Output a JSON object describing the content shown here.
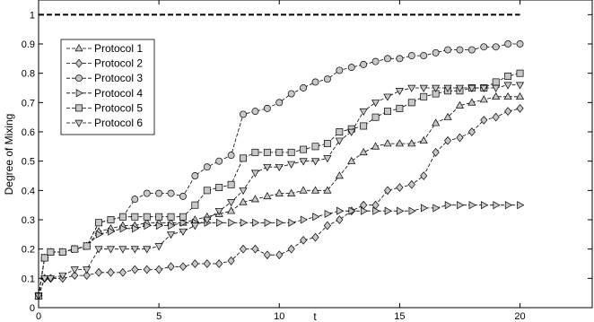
{
  "chart_data": {
    "type": "line",
    "title": "",
    "xlabel": "t",
    "ylabel": "Degree of Mixing",
    "xlim": [
      0,
      23
    ],
    "ylim": [
      0,
      1.05
    ],
    "xticks": [
      "0",
      "5",
      "10",
      "15",
      "20"
    ],
    "xtick_values": [
      0,
      5,
      10,
      15,
      20
    ],
    "yticks": [
      "0",
      "0.1",
      "0.2",
      "0.3",
      "0.4",
      "0.5",
      "0.6",
      "0.7",
      "0.8",
      "0.9",
      "1"
    ],
    "ytick_values": [
      0,
      0.1,
      0.2,
      0.3,
      0.4,
      0.5,
      0.6,
      0.7,
      0.8,
      0.9,
      1
    ],
    "grid": false,
    "legend_position": "top-left",
    "reference_line": {
      "y": 1,
      "style": "dashed",
      "color": "#000000"
    },
    "marker_fill": "#c8c8c8",
    "series": [
      {
        "name": "Protocol 1",
        "marker": "triangle-up",
        "points": [
          [
            0,
            0.04
          ],
          [
            0.25,
            0.17
          ],
          [
            0.5,
            0.19
          ],
          [
            1,
            0.19
          ],
          [
            1.5,
            0.2
          ],
          [
            2,
            0.21
          ],
          [
            2.5,
            0.26
          ],
          [
            3,
            0.27
          ],
          [
            3.5,
            0.28
          ],
          [
            4,
            0.28
          ],
          [
            4.5,
            0.29
          ],
          [
            5,
            0.29
          ],
          [
            5.5,
            0.29
          ],
          [
            6,
            0.29
          ],
          [
            6.5,
            0.3
          ],
          [
            7,
            0.31
          ],
          [
            7.5,
            0.32
          ],
          [
            8,
            0.33
          ],
          [
            8.5,
            0.36
          ],
          [
            9,
            0.37
          ],
          [
            9.5,
            0.38
          ],
          [
            10,
            0.39
          ],
          [
            10.5,
            0.39
          ],
          [
            11,
            0.4
          ],
          [
            11.5,
            0.4
          ],
          [
            12,
            0.4
          ],
          [
            12.5,
            0.45
          ],
          [
            13,
            0.5
          ],
          [
            13.5,
            0.53
          ],
          [
            14,
            0.55
          ],
          [
            14.5,
            0.56
          ],
          [
            15,
            0.56
          ],
          [
            15.5,
            0.56
          ],
          [
            16,
            0.57
          ],
          [
            16.5,
            0.63
          ],
          [
            17,
            0.65
          ],
          [
            17.5,
            0.69
          ],
          [
            18,
            0.7
          ],
          [
            18.5,
            0.71
          ],
          [
            19,
            0.72
          ],
          [
            19.5,
            0.72
          ],
          [
            20,
            0.72
          ]
        ]
      },
      {
        "name": "Protocol 2",
        "marker": "diamond",
        "points": [
          [
            0,
            0.04
          ],
          [
            0.25,
            0.1
          ],
          [
            0.5,
            0.1
          ],
          [
            1,
            0.1
          ],
          [
            1.5,
            0.11
          ],
          [
            2,
            0.11
          ],
          [
            2.5,
            0.12
          ],
          [
            3,
            0.12
          ],
          [
            3.5,
            0.12
          ],
          [
            4,
            0.13
          ],
          [
            4.5,
            0.13
          ],
          [
            5,
            0.13
          ],
          [
            5.5,
            0.14
          ],
          [
            6,
            0.14
          ],
          [
            6.5,
            0.15
          ],
          [
            7,
            0.15
          ],
          [
            7.5,
            0.15
          ],
          [
            8,
            0.16
          ],
          [
            8.5,
            0.2
          ],
          [
            9,
            0.2
          ],
          [
            9.5,
            0.18
          ],
          [
            10,
            0.18
          ],
          [
            10.5,
            0.2
          ],
          [
            11,
            0.23
          ],
          [
            11.5,
            0.24
          ],
          [
            12,
            0.28
          ],
          [
            12.5,
            0.3
          ],
          [
            13,
            0.33
          ],
          [
            13.5,
            0.35
          ],
          [
            14,
            0.35
          ],
          [
            14.5,
            0.4
          ],
          [
            15,
            0.41
          ],
          [
            15.5,
            0.42
          ],
          [
            16,
            0.45
          ],
          [
            16.5,
            0.53
          ],
          [
            17,
            0.57
          ],
          [
            17.5,
            0.58
          ],
          [
            18,
            0.6
          ],
          [
            18.5,
            0.64
          ],
          [
            19,
            0.65
          ],
          [
            19.5,
            0.67
          ],
          [
            20,
            0.68
          ]
        ]
      },
      {
        "name": "Protocol 3",
        "marker": "circle",
        "points": [
          [
            0,
            0.04
          ],
          [
            0.25,
            0.17
          ],
          [
            0.5,
            0.19
          ],
          [
            1,
            0.19
          ],
          [
            1.5,
            0.2
          ],
          [
            2,
            0.21
          ],
          [
            2.5,
            0.29
          ],
          [
            3,
            0.3
          ],
          [
            3.5,
            0.31
          ],
          [
            4,
            0.37
          ],
          [
            4.5,
            0.39
          ],
          [
            5,
            0.39
          ],
          [
            5.5,
            0.39
          ],
          [
            6,
            0.38
          ],
          [
            6.5,
            0.45
          ],
          [
            7,
            0.48
          ],
          [
            7.5,
            0.5
          ],
          [
            8,
            0.52
          ],
          [
            8.5,
            0.66
          ],
          [
            9,
            0.67
          ],
          [
            9.5,
            0.68
          ],
          [
            10,
            0.7
          ],
          [
            10.5,
            0.73
          ],
          [
            11,
            0.75
          ],
          [
            11.5,
            0.77
          ],
          [
            12,
            0.78
          ],
          [
            12.5,
            0.81
          ],
          [
            13,
            0.82
          ],
          [
            13.5,
            0.83
          ],
          [
            14,
            0.84
          ],
          [
            14.5,
            0.85
          ],
          [
            15,
            0.85
          ],
          [
            15.5,
            0.86
          ],
          [
            16,
            0.86
          ],
          [
            16.5,
            0.87
          ],
          [
            17,
            0.88
          ],
          [
            17.5,
            0.88
          ],
          [
            18,
            0.88
          ],
          [
            18.5,
            0.89
          ],
          [
            19,
            0.89
          ],
          [
            19.5,
            0.9
          ],
          [
            20,
            0.9
          ]
        ]
      },
      {
        "name": "Protocol 4",
        "marker": "triangle-right",
        "points": [
          [
            0,
            0.04
          ],
          [
            0.25,
            0.17
          ],
          [
            0.5,
            0.19
          ],
          [
            1,
            0.19
          ],
          [
            1.5,
            0.2
          ],
          [
            2,
            0.21
          ],
          [
            2.5,
            0.25
          ],
          [
            3,
            0.26
          ],
          [
            3.5,
            0.27
          ],
          [
            4,
            0.27
          ],
          [
            4.5,
            0.28
          ],
          [
            5,
            0.28
          ],
          [
            5.5,
            0.28
          ],
          [
            6,
            0.29
          ],
          [
            6.5,
            0.29
          ],
          [
            7,
            0.29
          ],
          [
            7.5,
            0.29
          ],
          [
            8,
            0.29
          ],
          [
            8.5,
            0.29
          ],
          [
            9,
            0.29
          ],
          [
            9.5,
            0.29
          ],
          [
            10,
            0.29
          ],
          [
            10.5,
            0.29
          ],
          [
            11,
            0.3
          ],
          [
            11.5,
            0.31
          ],
          [
            12,
            0.32
          ],
          [
            12.5,
            0.33
          ],
          [
            13,
            0.33
          ],
          [
            13.5,
            0.33
          ],
          [
            14,
            0.33
          ],
          [
            14.5,
            0.33
          ],
          [
            15,
            0.33
          ],
          [
            15.5,
            0.33
          ],
          [
            16,
            0.34
          ],
          [
            16.5,
            0.34
          ],
          [
            17,
            0.35
          ],
          [
            17.5,
            0.35
          ],
          [
            18,
            0.35
          ],
          [
            18.5,
            0.35
          ],
          [
            19,
            0.35
          ],
          [
            19.5,
            0.35
          ],
          [
            20,
            0.35
          ]
        ]
      },
      {
        "name": "Protocol 5",
        "marker": "square",
        "points": [
          [
            0,
            0.04
          ],
          [
            0.25,
            0.17
          ],
          [
            0.5,
            0.19
          ],
          [
            1,
            0.19
          ],
          [
            1.5,
            0.2
          ],
          [
            2,
            0.21
          ],
          [
            2.5,
            0.29
          ],
          [
            3,
            0.3
          ],
          [
            3.5,
            0.31
          ],
          [
            4,
            0.31
          ],
          [
            4.5,
            0.31
          ],
          [
            5,
            0.31
          ],
          [
            5.5,
            0.31
          ],
          [
            6,
            0.31
          ],
          [
            6.5,
            0.35
          ],
          [
            7,
            0.4
          ],
          [
            7.5,
            0.41
          ],
          [
            8,
            0.42
          ],
          [
            8.5,
            0.51
          ],
          [
            9,
            0.53
          ],
          [
            9.5,
            0.53
          ],
          [
            10,
            0.53
          ],
          [
            10.5,
            0.53
          ],
          [
            11,
            0.54
          ],
          [
            11.5,
            0.55
          ],
          [
            12,
            0.56
          ],
          [
            12.5,
            0.6
          ],
          [
            13,
            0.61
          ],
          [
            13.5,
            0.62
          ],
          [
            14,
            0.65
          ],
          [
            14.5,
            0.67
          ],
          [
            15,
            0.68
          ],
          [
            15.5,
            0.7
          ],
          [
            16,
            0.72
          ],
          [
            16.5,
            0.73
          ],
          [
            17,
            0.74
          ],
          [
            17.5,
            0.74
          ],
          [
            18,
            0.75
          ],
          [
            18.5,
            0.75
          ],
          [
            19,
            0.77
          ],
          [
            19.5,
            0.79
          ],
          [
            20,
            0.8
          ]
        ]
      },
      {
        "name": "Protocol 6",
        "marker": "triangle-down",
        "points": [
          [
            0,
            0.04
          ],
          [
            0.25,
            0.1
          ],
          [
            0.5,
            0.1
          ],
          [
            1,
            0.11
          ],
          [
            1.5,
            0.13
          ],
          [
            2,
            0.13
          ],
          [
            2.5,
            0.2
          ],
          [
            3,
            0.2
          ],
          [
            3.5,
            0.2
          ],
          [
            4,
            0.2
          ],
          [
            4.5,
            0.2
          ],
          [
            5,
            0.21
          ],
          [
            5.5,
            0.25
          ],
          [
            6,
            0.26
          ],
          [
            6.5,
            0.28
          ],
          [
            7,
            0.3
          ],
          [
            7.5,
            0.33
          ],
          [
            8,
            0.36
          ],
          [
            8.5,
            0.4
          ],
          [
            9,
            0.46
          ],
          [
            9.5,
            0.48
          ],
          [
            10,
            0.48
          ],
          [
            10.5,
            0.49
          ],
          [
            11,
            0.5
          ],
          [
            11.5,
            0.5
          ],
          [
            12,
            0.51
          ],
          [
            12.5,
            0.57
          ],
          [
            13,
            0.6
          ],
          [
            13.5,
            0.67
          ],
          [
            14,
            0.7
          ],
          [
            14.5,
            0.72
          ],
          [
            15,
            0.74
          ],
          [
            15.5,
            0.75
          ],
          [
            16,
            0.75
          ],
          [
            16.5,
            0.75
          ],
          [
            17,
            0.75
          ],
          [
            17.5,
            0.75
          ],
          [
            18,
            0.75
          ],
          [
            18.5,
            0.75
          ],
          [
            19,
            0.75
          ],
          [
            19.5,
            0.76
          ],
          [
            20,
            0.76
          ]
        ]
      }
    ]
  }
}
